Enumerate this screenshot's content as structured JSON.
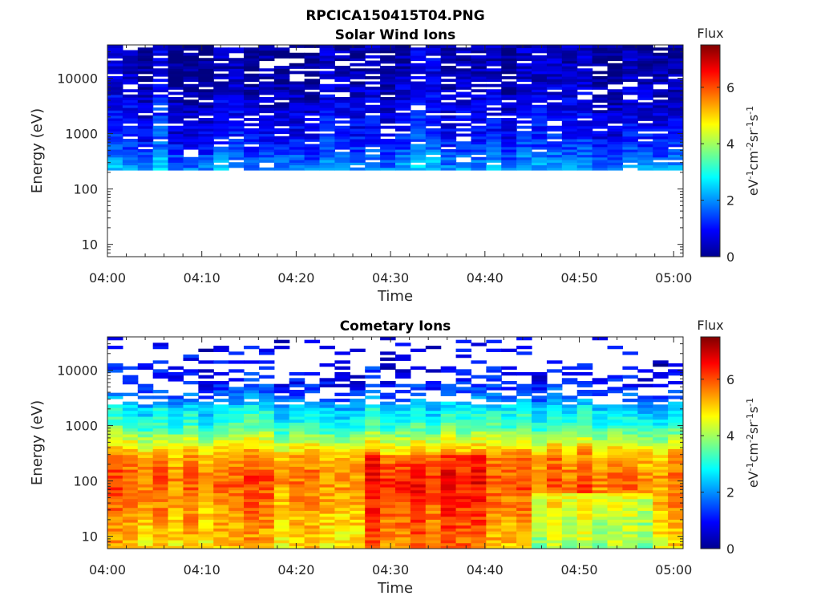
{
  "page_title": "RPCICA150415T04.PNG",
  "colors": {
    "colormap": "jet",
    "axis": "#262626",
    "background": "#ffffff"
  },
  "chart_data": [
    {
      "type": "heatmap",
      "title": "Solar Wind Ions",
      "xlabel": "Time",
      "ylabel": "Energy (eV)",
      "y_scale": "log",
      "x_range": [
        "04:00",
        "05:01"
      ],
      "y_range": [
        6,
        40000
      ],
      "x_ticks": [
        "04:00",
        "04:10",
        "04:20",
        "04:30",
        "04:40",
        "04:50",
        "05:00"
      ],
      "y_ticks": [
        "10",
        "100",
        "1000",
        "10000"
      ],
      "energy_cutoff_low": 220,
      "colorbar": {
        "title": "Flux",
        "label": "eV-1cm-2sr-1s-1",
        "range": [
          0,
          7.5
        ],
        "ticks": [
          "0",
          "2",
          "4",
          "6"
        ]
      },
      "flux_profile": {
        "energy_ev": [
          220,
          300,
          450,
          700,
          1000,
          2000,
          5000,
          10000,
          40000
        ],
        "typical_flux": [
          2.2,
          2.0,
          1.6,
          1.3,
          1.1,
          0.9,
          0.7,
          0.5,
          0.4
        ]
      },
      "gap_fraction": 0.12
    },
    {
      "type": "heatmap",
      "title": "Cometary Ions",
      "xlabel": "Time",
      "ylabel": "Energy (eV)",
      "y_scale": "log",
      "x_range": [
        "04:00",
        "05:01"
      ],
      "y_range": [
        6,
        40000
      ],
      "x_ticks": [
        "04:00",
        "04:10",
        "04:20",
        "04:30",
        "04:40",
        "04:50",
        "05:00"
      ],
      "y_ticks": [
        "10",
        "100",
        "1000",
        "10000"
      ],
      "colorbar": {
        "title": "Flux",
        "label": "eV-1cm-2sr-1s-1",
        "range": [
          0,
          7.5
        ],
        "ticks": [
          "0",
          "2",
          "4",
          "6"
        ]
      },
      "flux_profile": {
        "energy_ev": [
          6,
          10,
          30,
          100,
          300,
          700,
          1000,
          2000,
          3000,
          5000,
          10000,
          40000
        ],
        "typical_flux": [
          5.0,
          5.1,
          5.4,
          5.8,
          5.3,
          3.8,
          3.2,
          2.6,
          1.8,
          1.2,
          0.9,
          0.8
        ]
      },
      "enhanced_interval": [
        "04:28",
        "04:40"
      ],
      "reduced_interval": [
        "04:45",
        "04:58"
      ]
    }
  ]
}
